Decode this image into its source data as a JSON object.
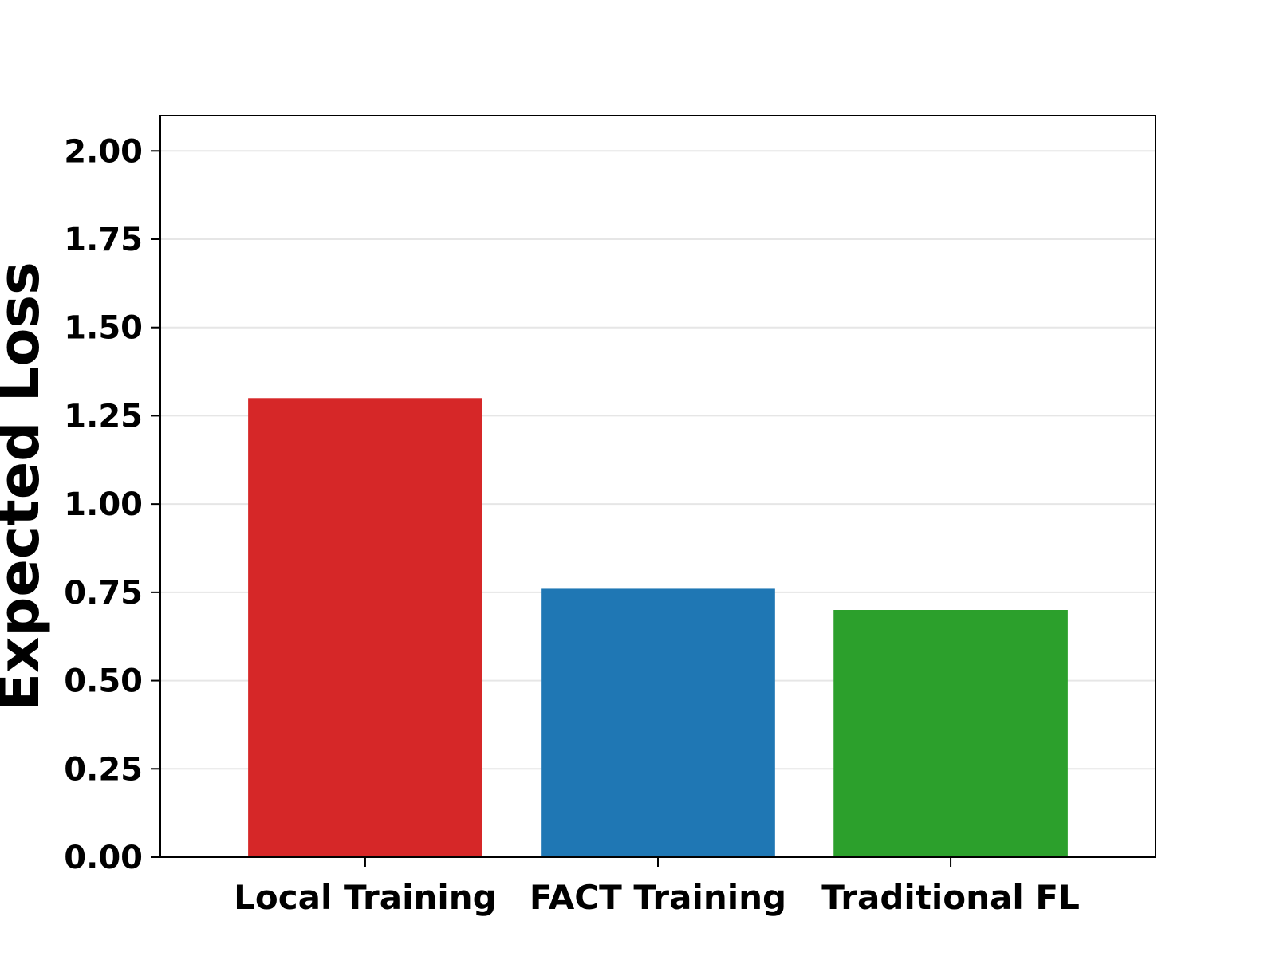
{
  "chart_data": {
    "type": "bar",
    "title": "",
    "xlabel": "",
    "ylabel": "Expected Loss",
    "categories": [
      "Local Training",
      "FACT Training",
      "Traditional FL"
    ],
    "values": [
      1.3,
      0.76,
      0.7
    ],
    "colors": [
      "#d62728",
      "#1f77b4",
      "#2ca02c"
    ],
    "ylim": [
      0,
      2.1
    ],
    "yticks": [
      0.0,
      0.25,
      0.5,
      0.75,
      1.0,
      1.25,
      1.5,
      1.75,
      2.0
    ],
    "ytick_labels": [
      "0.00",
      "0.25",
      "0.50",
      "0.75",
      "1.00",
      "1.25",
      "1.50",
      "1.75",
      "2.00"
    ],
    "grid": "y-axis",
    "grid_color": "#e6e6e6"
  }
}
